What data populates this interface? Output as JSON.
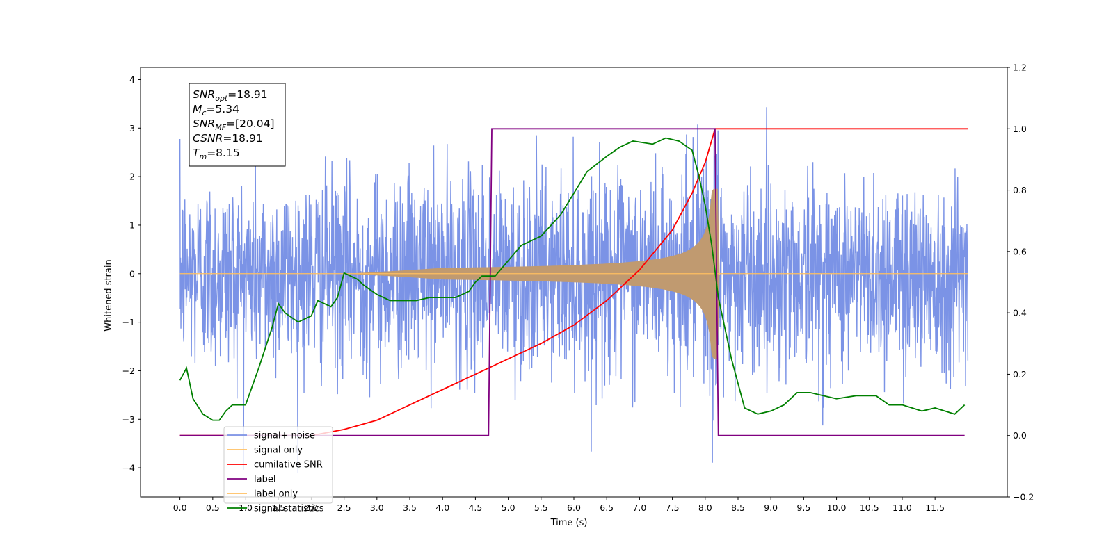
{
  "chart_data": {
    "type": "line",
    "xlabel": "Time (s)",
    "ylabel_left": "Whitened strain",
    "ylabel_right": "",
    "xlim": [
      -0.6,
      12.6
    ],
    "ylim_left": [
      -4.6,
      4.25
    ],
    "ylim_right": [
      -0.2,
      1.2
    ],
    "x_ticks": [
      "0.0",
      "0.5",
      "1.0",
      "1.5",
      "2.0",
      "2.5",
      "3.0",
      "3.5",
      "4.0",
      "4.5",
      "5.0",
      "5.5",
      "6.0",
      "6.5",
      "7.0",
      "7.5",
      "8.0",
      "8.5",
      "9.0",
      "9.5",
      "10.0",
      "10.5",
      "11.0",
      "11.5"
    ],
    "y_ticks_left": [
      "4",
      "3",
      "2",
      "1",
      "0",
      "−1",
      "−2",
      "−3",
      "−4"
    ],
    "y_ticks_right": [
      "1.2",
      "1.0",
      "0.8",
      "0.6",
      "0.4",
      "0.2",
      "0.0",
      "−0.2"
    ],
    "grid": false,
    "legend_position": "lower-left",
    "annotation": {
      "lines": [
        {
          "base": "SNR",
          "sub": "opt",
          "value": "=18.91"
        },
        {
          "base": "M",
          "sub": "c",
          "value": "=5.34"
        },
        {
          "base": "SNR",
          "sub": "MF",
          "value": "=[20.04]"
        },
        {
          "base": "CSNR",
          "sub": "",
          "value": "=18.91"
        },
        {
          "base": "T",
          "sub": "m",
          "value": "=8.15"
        }
      ]
    },
    "series": [
      {
        "name": "signal+ noise",
        "color": "#7b93e6",
        "axis": "left",
        "description_params": {
          "t_start": 0.0,
          "t_end": 12.0,
          "noise_std": 1.0,
          "merger_time": 8.15
        }
      },
      {
        "name": "signal only",
        "color": "#ffbf60",
        "axis": "left",
        "description_params": {
          "t_start": 0.0,
          "t_end": 12.0,
          "signal_start": 4.0,
          "peak_amplitude": 1.75,
          "merger_time": 8.15
        }
      },
      {
        "name": "cumilative SNR",
        "color": "#ff0000",
        "axis": "right",
        "x": [
          0.0,
          1.0,
          2.0,
          2.5,
          3.0,
          3.5,
          4.0,
          4.5,
          5.0,
          5.5,
          6.0,
          6.5,
          7.0,
          7.5,
          7.8,
          8.0,
          8.15,
          8.2,
          12.0
        ],
        "values": [
          0.0,
          0.0,
          0.0,
          0.02,
          0.05,
          0.1,
          0.15,
          0.2,
          0.25,
          0.3,
          0.36,
          0.44,
          0.54,
          0.67,
          0.79,
          0.89,
          1.0,
          1.0,
          1.0
        ]
      },
      {
        "name": "label",
        "color": "#800080",
        "axis": "right",
        "x": [
          0.0,
          4.7,
          4.75,
          8.15,
          8.2,
          11.95
        ],
        "values": [
          0.0,
          0.0,
          1.0,
          1.0,
          0.0,
          0.0
        ]
      },
      {
        "name": "label only",
        "color": "#ffbf60",
        "axis": "right",
        "hidden_in_plot": true
      },
      {
        "name": "signal statistics",
        "color": "#008000",
        "axis": "right",
        "x": [
          0.0,
          0.1,
          0.2,
          0.35,
          0.5,
          0.6,
          0.7,
          0.8,
          1.0,
          1.2,
          1.4,
          1.5,
          1.6,
          1.8,
          1.9,
          2.0,
          2.1,
          2.3,
          2.4,
          2.5,
          2.7,
          2.8,
          3.0,
          3.2,
          3.4,
          3.6,
          3.8,
          4.0,
          4.2,
          4.4,
          4.5,
          4.6,
          4.8,
          5.0,
          5.2,
          5.5,
          5.8,
          6.0,
          6.2,
          6.5,
          6.7,
          6.9,
          7.2,
          7.4,
          7.6,
          7.8,
          7.9,
          8.0,
          8.1,
          8.2,
          8.4,
          8.6,
          8.8,
          9.0,
          9.2,
          9.4,
          9.6,
          9.8,
          10.0,
          10.3,
          10.6,
          10.8,
          11.0,
          11.3,
          11.5,
          11.8,
          11.95
        ],
        "values": [
          0.18,
          0.22,
          0.12,
          0.07,
          0.05,
          0.05,
          0.08,
          0.1,
          0.1,
          0.22,
          0.35,
          0.43,
          0.4,
          0.37,
          0.38,
          0.39,
          0.44,
          0.42,
          0.45,
          0.53,
          0.51,
          0.49,
          0.46,
          0.44,
          0.44,
          0.44,
          0.45,
          0.45,
          0.45,
          0.47,
          0.5,
          0.52,
          0.52,
          0.57,
          0.62,
          0.65,
          0.72,
          0.79,
          0.86,
          0.91,
          0.94,
          0.96,
          0.95,
          0.97,
          0.96,
          0.93,
          0.85,
          0.75,
          0.62,
          0.45,
          0.25,
          0.09,
          0.07,
          0.08,
          0.1,
          0.14,
          0.14,
          0.13,
          0.12,
          0.13,
          0.13,
          0.1,
          0.1,
          0.08,
          0.09,
          0.07,
          0.1
        ]
      }
    ]
  }
}
